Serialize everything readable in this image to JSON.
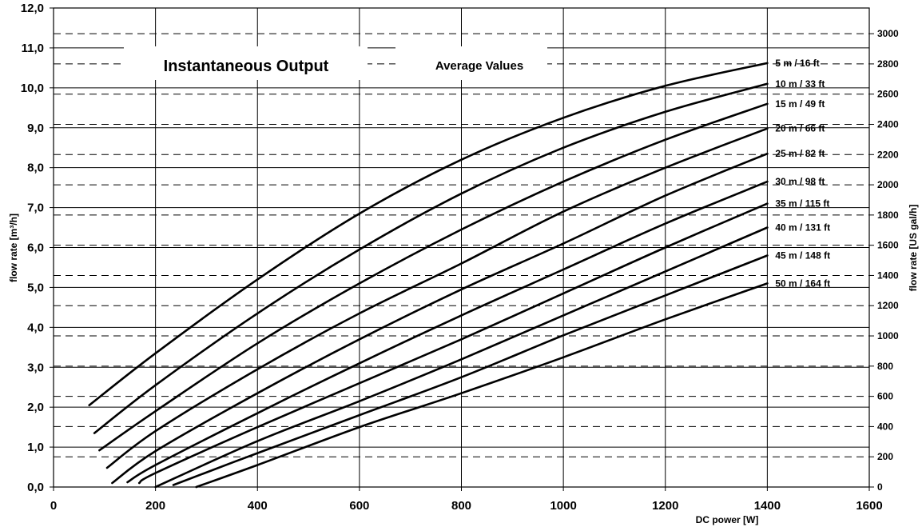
{
  "chart_data": {
    "type": "line",
    "title": "Instantaneous Output",
    "subtitle": "Average Values",
    "xlabel": "DC power [W]",
    "ylabel": "flow rate [m³/h]",
    "y2label": "flow rate [US gal/h]",
    "xlim": [
      0,
      1600
    ],
    "ylim": [
      0,
      12
    ],
    "y2lim": [
      0,
      3170
    ],
    "grid": true,
    "x_ticks": [
      "0",
      "200",
      "400",
      "600",
      "800",
      "1000",
      "1200",
      "1400",
      "1600"
    ],
    "y_ticks": [
      "0,0",
      "1,0",
      "2,0",
      "3,0",
      "4,0",
      "5,0",
      "6,0",
      "7,0",
      "8,0",
      "9,0",
      "10,0",
      "11,0",
      "12,0"
    ],
    "y2_ticks": [
      "0",
      "200",
      "400",
      "600",
      "800",
      "1000",
      "1200",
      "1400",
      "1600",
      "1800",
      "2000",
      "2200",
      "2400",
      "2600",
      "2800",
      "3000"
    ],
    "series": [
      {
        "name": "5 m / 16 ft",
        "x": [
          70,
          200,
          400,
          600,
          800,
          1000,
          1200,
          1400
        ],
        "y": [
          2.05,
          3.35,
          5.2,
          6.85,
          8.2,
          9.25,
          10.05,
          10.62
        ]
      },
      {
        "name": "10 m / 33 ft",
        "x": [
          80,
          200,
          400,
          600,
          800,
          1000,
          1200,
          1400
        ],
        "y": [
          1.35,
          2.55,
          4.35,
          5.95,
          7.35,
          8.5,
          9.4,
          10.1
        ]
      },
      {
        "name": "15 m / 49 ft",
        "x": [
          90,
          200,
          400,
          600,
          800,
          1000,
          1200,
          1400
        ],
        "y": [
          0.92,
          1.9,
          3.6,
          5.1,
          6.45,
          7.65,
          8.7,
          9.6
        ]
      },
      {
        "name": "20 m / 66 ft",
        "x": [
          105,
          200,
          400,
          600,
          800,
          1000,
          1200,
          1400
        ],
        "y": [
          0.48,
          1.4,
          2.95,
          4.35,
          5.6,
          6.9,
          8.0,
          8.98
        ]
      },
      {
        "name": "25 m / 82 ft",
        "x": [
          115,
          200,
          400,
          600,
          800,
          1000,
          1200,
          1400
        ],
        "y": [
          0.1,
          0.9,
          2.35,
          3.7,
          4.95,
          6.1,
          7.3,
          8.35
        ]
      },
      {
        "name": "30 m / 98 ft",
        "x": [
          145,
          200,
          400,
          600,
          800,
          1000,
          1200,
          1400
        ],
        "y": [
          0.12,
          0.55,
          1.85,
          3.1,
          4.3,
          5.45,
          6.6,
          7.65
        ]
      },
      {
        "name": "35 m / 115 ft",
        "x": [
          168,
          200,
          400,
          600,
          800,
          1000,
          1200,
          1400
        ],
        "y": [
          0.1,
          0.35,
          1.5,
          2.6,
          3.7,
          4.85,
          6.0,
          7.1
        ]
      },
      {
        "name": "40 m / 131 ft",
        "x": [
          200,
          400,
          600,
          800,
          1000,
          1200,
          1400
        ],
        "y": [
          0.0,
          1.15,
          2.15,
          3.2,
          4.3,
          5.4,
          6.5
        ]
      },
      {
        "name": "45 m / 148 ft",
        "x": [
          235,
          400,
          600,
          800,
          1000,
          1200,
          1400
        ],
        "y": [
          0.05,
          0.85,
          1.8,
          2.75,
          3.8,
          4.8,
          5.8
        ]
      },
      {
        "name": "50 m / 164 ft",
        "x": [
          280,
          400,
          600,
          800,
          1000,
          1200,
          1400
        ],
        "y": [
          0.0,
          0.55,
          1.5,
          2.35,
          3.25,
          4.2,
          5.1
        ]
      }
    ]
  }
}
